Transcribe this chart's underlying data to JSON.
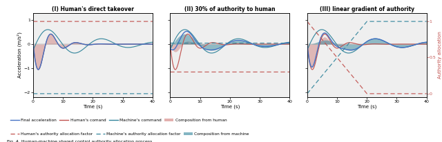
{
  "title1": "(I) Human's direct takeover",
  "title2": "(II) 30% of authority to human",
  "title3": "(III) linear gradient of authority",
  "xlabel": "Time (s)",
  "ylabel_left": "Acceleration (m/s²)",
  "ylabel_right": "Authority allocation",
  "caption": "Fig. 4. Human-machine shared control authority allocation process.",
  "color_final": "#4472c4",
  "color_human_cmd": "#c0504d",
  "color_machine_cmd": "#31849b",
  "color_comp_human": "#c0504d",
  "color_comp_machine": "#31849b",
  "color_human_auth": "#c0504d",
  "color_machine_auth": "#31849b",
  "bg_color": "#efefef"
}
